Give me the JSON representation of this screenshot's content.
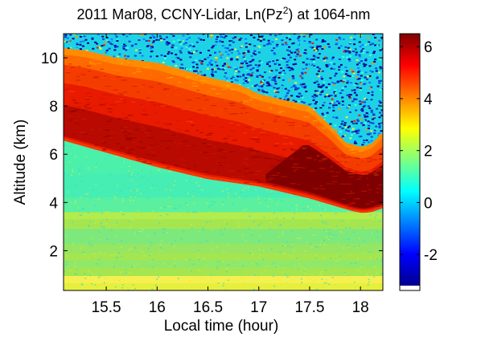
{
  "chart_data": {
    "type": "heatmap",
    "title": {
      "prefix": "2011 Mar08, CCNY-Lidar, Ln(Pz",
      "superscript": "2",
      "suffix": ") at 1064-nm"
    },
    "xlabel": "Local time (hour)",
    "ylabel": "Altitude (km)",
    "xlim": [
      15.08,
      18.22
    ],
    "ylim": [
      0.35,
      11.0
    ],
    "xticks": [
      15.5,
      16,
      16.5,
      17,
      17.5,
      18
    ],
    "xtick_labels": [
      "15.5",
      "16",
      "16.5",
      "17",
      "17.5",
      "18"
    ],
    "yticks": [
      2,
      4,
      6,
      8,
      10
    ],
    "ytick_labels": [
      "2",
      "4",
      "6",
      "8",
      "10"
    ],
    "colorbar": {
      "colormap": "jet",
      "range": [
        -3.2,
        6.5
      ],
      "ticks": [
        -2,
        0,
        2,
        4,
        6
      ],
      "tick_labels": [
        "-2",
        "0",
        "2",
        "4",
        "6"
      ]
    },
    "colors": {
      "dark_red": "#7f0000",
      "red": "#e81a00",
      "orange": "#ff8c00",
      "yellow": "#e6f03c",
      "green_yellow": "#a5e650",
      "cyan_green": "#4bf0aa",
      "cyan": "#1ed2e6",
      "blue": "#0a3cd2",
      "navy": "#00008c"
    },
    "features": {
      "cloud_top_km": [
        [
          15.08,
          10.4
        ],
        [
          15.3,
          10.3
        ],
        [
          15.6,
          10.0
        ],
        [
          16.0,
          9.8
        ],
        [
          16.5,
          9.2
        ],
        [
          16.8,
          8.9
        ],
        [
          17.0,
          8.5
        ],
        [
          17.3,
          8.2
        ],
        [
          17.5,
          8.0
        ],
        [
          17.7,
          7.2
        ],
        [
          17.85,
          6.5
        ],
        [
          18.0,
          6.3
        ],
        [
          18.1,
          6.4
        ],
        [
          18.22,
          6.9
        ]
      ],
      "cloud_base_km": [
        [
          15.08,
          6.6
        ],
        [
          15.5,
          6.1
        ],
        [
          16.0,
          5.5
        ],
        [
          16.5,
          5.0
        ],
        [
          17.0,
          4.7
        ],
        [
          17.3,
          4.4
        ],
        [
          17.5,
          4.2
        ],
        [
          17.7,
          3.95
        ],
        [
          17.9,
          3.7
        ],
        [
          18.0,
          3.6
        ],
        [
          18.1,
          3.62
        ],
        [
          18.22,
          3.8
        ]
      ]
    }
  }
}
